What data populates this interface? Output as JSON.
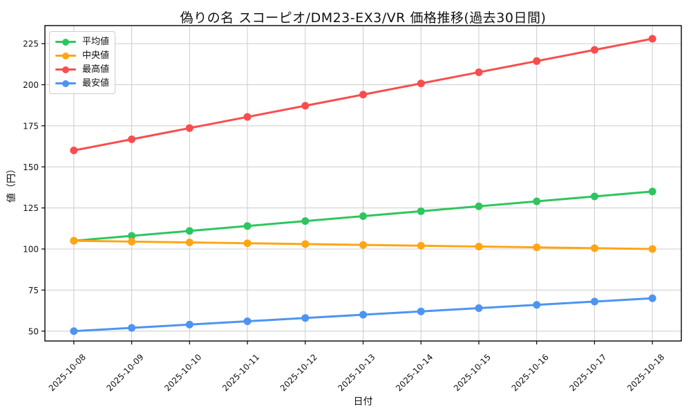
{
  "figure": {
    "background": "#ffffff",
    "grid_color": "#cccccc",
    "axis_color": "#000000"
  },
  "chart_data": {
    "type": "line",
    "title": "偽りの名 スコーピオ/DM23-EX3/VR 価格推移(過去30日間)",
    "xlabel": "日付",
    "ylabel": "値（円）",
    "categories": [
      "2025-10-08",
      "2025-10-09",
      "2025-10-10",
      "2025-10-11",
      "2025-10-12",
      "2025-10-13",
      "2025-10-14",
      "2025-10-15",
      "2025-10-16",
      "2025-10-17",
      "2025-10-18"
    ],
    "series": [
      {
        "key": "average",
        "name": "平均値",
        "color": "#2dc65e",
        "values": [
          105,
          108,
          111,
          114,
          117,
          120,
          123,
          126,
          129,
          132,
          135
        ]
      },
      {
        "key": "median",
        "name": "中央値",
        "color": "#ffa514",
        "values": [
          105,
          104.5,
          104,
          103.5,
          103,
          102.5,
          102,
          101.5,
          101,
          100.5,
          100
        ]
      },
      {
        "key": "highest",
        "name": "最高値",
        "color": "#f94d4d",
        "values": [
          160,
          166.8,
          173.6,
          180.4,
          187.2,
          194,
          200.8,
          207.6,
          214.4,
          221.2,
          228
        ]
      },
      {
        "key": "lowest",
        "name": "最安値",
        "color": "#4d94f2",
        "values": [
          50,
          52,
          54,
          56,
          58,
          60,
          62,
          64,
          66,
          68,
          70
        ]
      }
    ],
    "yticks": [
      50,
      75,
      100,
      125,
      150,
      175,
      200,
      225
    ],
    "ylim": [
      44,
      236
    ],
    "grid": true,
    "legend_position": "upper left",
    "x_tick_rotation_deg": 45
  }
}
